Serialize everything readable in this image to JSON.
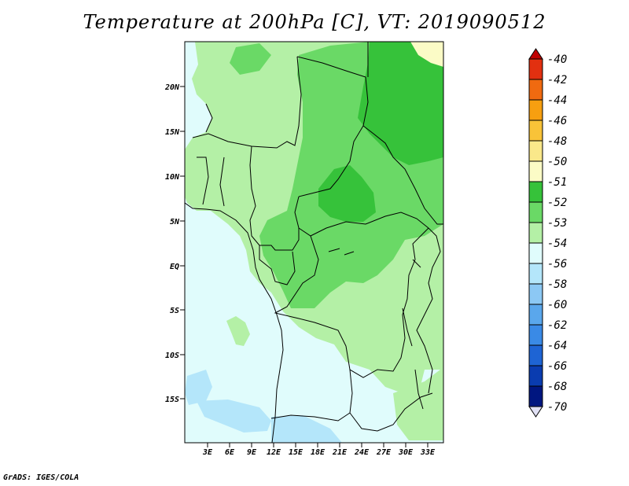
{
  "title": "Temperature at 200hPa [C], VT: 2019090512",
  "credit": "GrADS: IGES/COLA",
  "map": {
    "lat_labels": [
      "20N",
      "15N",
      "10N",
      "5N",
      "EQ",
      "5S",
      "10S",
      "15S"
    ],
    "lon_labels": [
      "3E",
      "6E",
      "9E",
      "12E",
      "15E",
      "18E",
      "21E",
      "24E",
      "27E",
      "30E",
      "33E"
    ]
  },
  "colorbar": {
    "labels": [
      "-40",
      "-42",
      "-44",
      "-46",
      "-48",
      "-50",
      "-51",
      "-52",
      "-53",
      "-54",
      "-56",
      "-58",
      "-60",
      "-62",
      "-64",
      "-66",
      "-68",
      "-70"
    ],
    "colors": [
      "#c00000",
      "#e23010",
      "#f06a10",
      "#f79f10",
      "#f9c338",
      "#fae88a",
      "#fbfbc6",
      "#36c23a",
      "#6ad966",
      "#b4f0a6",
      "#e0fcfc",
      "#b4e6fa",
      "#8cc8f4",
      "#5aa7ec",
      "#3a8ae6",
      "#1e64d4",
      "#0a3cb0",
      "#001680",
      "#e0e0f4"
    ]
  }
}
